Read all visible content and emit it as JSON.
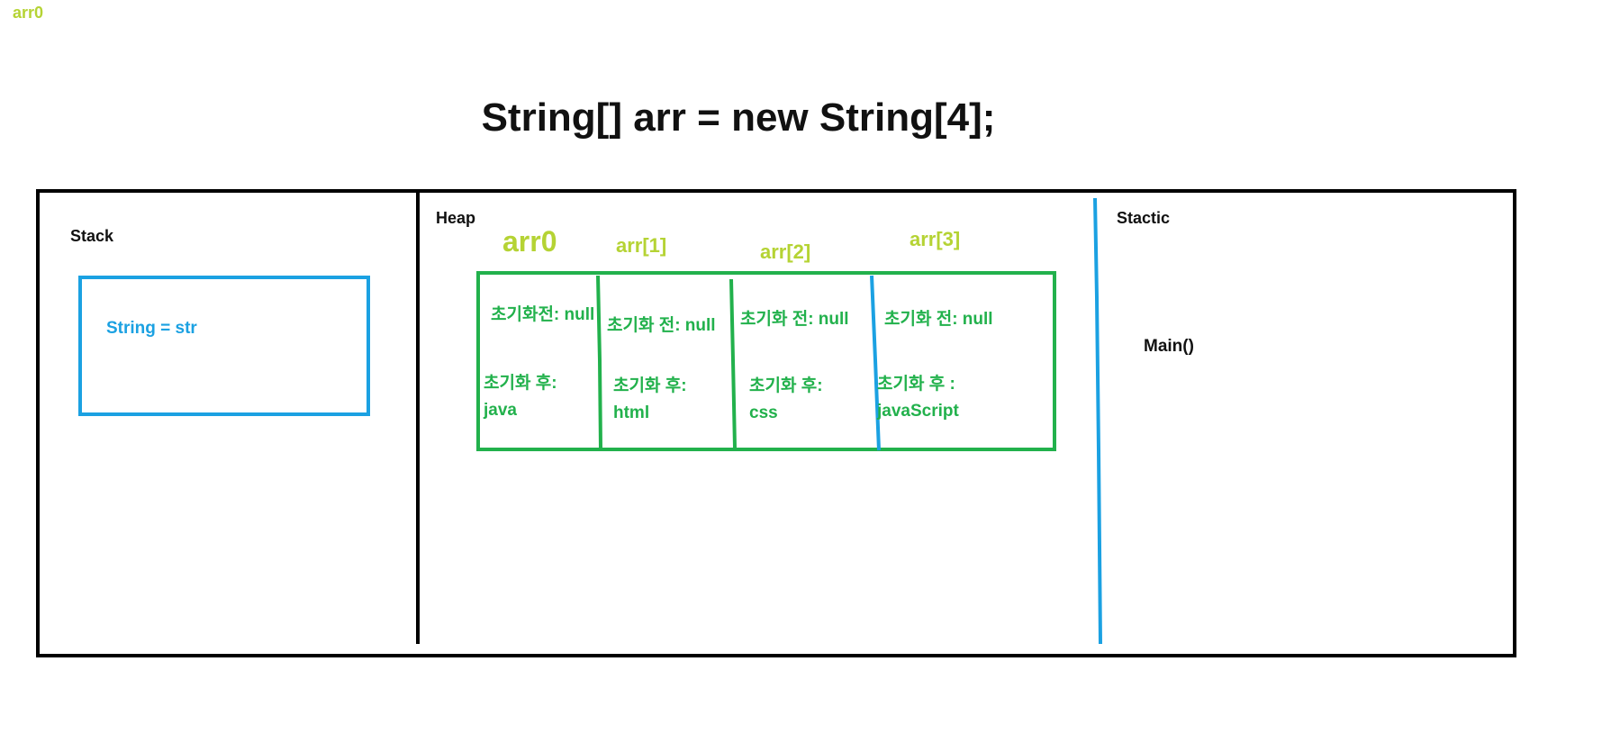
{
  "corner_label": "arr0",
  "title": "String[] arr = new String[4];",
  "stack": {
    "label": "Stack",
    "variable": "String = str"
  },
  "heap": {
    "label": "Heap",
    "cells": [
      {
        "index_label": "arr0",
        "before": "초기화전: null",
        "after_label": "초기화 후:",
        "after_value": "java"
      },
      {
        "index_label": "arr[1]",
        "before": "초기화 전: null",
        "after_label": "초기화 후:",
        "after_value": "html"
      },
      {
        "index_label": "arr[2]",
        "before": "초기화 전: null",
        "after_label": "초기화 후:",
        "after_value": "css"
      },
      {
        "index_label": "arr[3]",
        "before": "초기화 전: null",
        "after_label": "초기화 후 :",
        "after_value": "javaScript"
      }
    ]
  },
  "static": {
    "label": "Stactic",
    "method": "Main()"
  },
  "colors": {
    "outline": "#000000",
    "stack_box": "#1ba1e2",
    "array_box": "#22b14c",
    "index_label": "#b5d334",
    "static_divider": "#1ba1e2"
  }
}
